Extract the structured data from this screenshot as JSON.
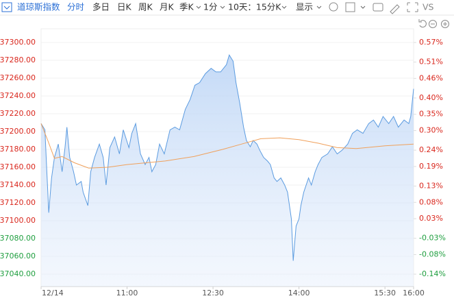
{
  "toolbar": {
    "items": [
      "道琼斯指数",
      "分时",
      "多日",
      "日K",
      "周K",
      "月K",
      "季K",
      "1分",
      "10天：15分K",
      "显示",
      "VS"
    ]
  },
  "chart_data": {
    "type": "line",
    "xlim": [
      0,
      390
    ],
    "xticks": [
      {
        "value": 0,
        "label": "12/14"
      },
      {
        "value": 90,
        "label": "11:00"
      },
      {
        "value": 180,
        "label": "12:30"
      },
      {
        "value": 270,
        "label": "14:00"
      },
      {
        "value": 360,
        "label": "15:30"
      },
      {
        "value": 390,
        "label": "16:00"
      }
    ],
    "ylim": [
      37040,
      37300
    ],
    "yticks": [
      {
        "value": 37300,
        "label": "37300.00"
      },
      {
        "value": 37280,
        "label": "37280.00"
      },
      {
        "value": 37260,
        "label": "37260.00"
      },
      {
        "value": 37240,
        "label": "37240.00"
      },
      {
        "value": 37220,
        "label": "37220.00"
      },
      {
        "value": 37200,
        "label": "37200.00"
      },
      {
        "value": 37180,
        "label": "37180.00"
      },
      {
        "value": 37160,
        "label": "37160.00"
      },
      {
        "value": 37140,
        "label": "37140.00"
      },
      {
        "value": 37120,
        "label": "37120.00"
      },
      {
        "value": 37100,
        "label": "37100.00"
      },
      {
        "value": 37080,
        "label": "37080.00"
      },
      {
        "value": 37060,
        "label": "37060.00"
      },
      {
        "value": 37040,
        "label": "37040.00"
      }
    ],
    "y2lim": [
      -0.14,
      0.57
    ],
    "y2ticks": [
      {
        "value": 0.57,
        "label": "0.57%"
      },
      {
        "value": 0.51,
        "label": "0.51%"
      },
      {
        "value": 0.46,
        "label": "0.46%"
      },
      {
        "value": 0.4,
        "label": "0.40%"
      },
      {
        "value": 0.35,
        "label": "0.35%"
      },
      {
        "value": 0.3,
        "label": "0.30%"
      },
      {
        "value": 0.24,
        "label": "0.24%"
      },
      {
        "value": 0.19,
        "label": "0.19%"
      },
      {
        "value": 0.13,
        "label": "0.13%"
      },
      {
        "value": 0.08,
        "label": "0.08%"
      },
      {
        "value": 0.03,
        "label": "0.03%"
      },
      {
        "value": -0.03,
        "label": "-0.03%"
      },
      {
        "value": -0.08,
        "label": "-0.08%"
      },
      {
        "value": -0.14,
        "label": "-0.14%"
      }
    ],
    "grid": true,
    "series": [
      {
        "color": "#5b9be0",
        "area": true,
        "x": [
          0,
          4,
          6,
          8,
          11,
          14,
          18,
          22,
          25,
          27,
          30,
          34,
          37,
          42,
          44,
          49,
          52,
          56,
          61,
          65,
          68,
          72,
          77,
          82,
          86,
          92,
          95,
          99,
          104,
          109,
          113,
          116,
          120,
          124,
          129,
          135,
          140,
          145,
          151,
          156,
          161,
          166,
          172,
          178,
          183,
          188,
          194,
          197,
          201,
          204,
          208,
          212,
          215,
          219,
          222,
          226,
          229,
          233,
          237,
          240,
          244,
          247,
          251,
          255,
          258,
          262,
          264,
          267,
          270,
          272,
          275,
          280,
          283,
          287,
          290,
          294,
          300,
          305,
          310,
          315,
          321,
          326,
          331,
          337,
          343,
          348,
          353,
          358,
          364,
          369,
          374,
          380,
          385,
          387,
          390
        ],
        "values": [
          37209,
          37202,
          37155,
          37109,
          37148,
          37171,
          37186,
          37155,
          37182,
          37205,
          37171,
          37155,
          37140,
          37144,
          37132,
          37117,
          37155,
          37171,
          37186,
          37171,
          37140,
          37182,
          37194,
          37175,
          37202,
          37182,
          37198,
          37209,
          37175,
          37163,
          37171,
          37155,
          37163,
          37186,
          37175,
          37202,
          37205,
          37202,
          37225,
          37236,
          37252,
          37255,
          37265,
          37271,
          37267,
          37267,
          37275,
          37286,
          37279,
          37255,
          37232,
          37205,
          37190,
          37183,
          37190,
          37186,
          37179,
          37171,
          37167,
          37163,
          37148,
          37144,
          37148,
          37140,
          37132,
          37102,
          37055,
          37094,
          37102,
          37117,
          37132,
          37148,
          37140,
          37155,
          37163,
          37171,
          37175,
          37183,
          37175,
          37179,
          37186,
          37198,
          37202,
          37198,
          37209,
          37213,
          37205,
          37217,
          37209,
          37217,
          37205,
          37213,
          37209,
          37217,
          37248
        ]
      },
      {
        "color": "#f0a05a",
        "x": [
          0,
          7,
          14,
          22,
          35,
          50,
          70,
          90,
          110,
          130,
          160,
          190,
          210,
          230,
          250,
          270,
          290,
          310,
          330,
          360,
          390
        ],
        "values": [
          37209,
          37190,
          37170,
          37172,
          37165,
          37159,
          37160,
          37163,
          37165,
          37167,
          37172,
          37180,
          37186,
          37192,
          37193,
          37191,
          37187,
          37182,
          37181,
          37184,
          37186
        ]
      }
    ]
  }
}
